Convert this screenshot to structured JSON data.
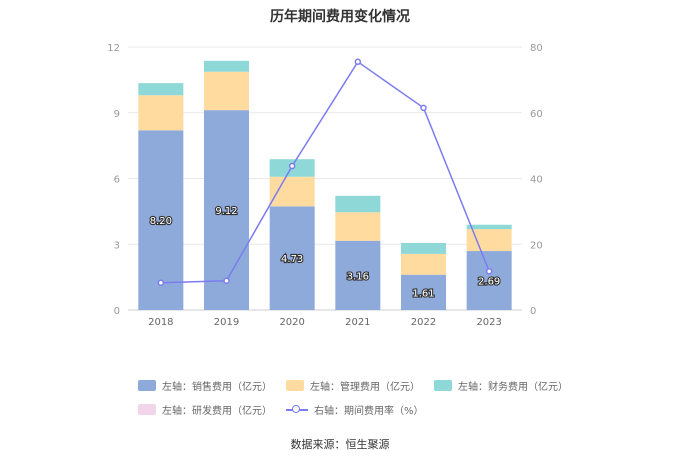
{
  "colors": {
    "sales": "#8eaadb",
    "admin": "#ffdba0",
    "finance": "#8ed8d8",
    "rnd": "#f2d5ea",
    "rate": "#7b7cf0",
    "axis": "#999999",
    "grid": "#e8e8e8"
  },
  "chart_data": {
    "type": "bar",
    "title": "历年期间费用变化情况",
    "categories": [
      "2018",
      "2019",
      "2020",
      "2021",
      "2022",
      "2023"
    ],
    "left_axis": {
      "ylim": [
        0,
        12
      ],
      "ticks": [
        "0",
        "3",
        "6",
        "9",
        "12"
      ]
    },
    "right_axis": {
      "ylim": [
        0,
        80
      ],
      "ticks": [
        "0",
        "20",
        "40",
        "60",
        "80"
      ]
    },
    "series": [
      {
        "name": "左轴：销售费用（亿元）",
        "key": "sales",
        "stack": true,
        "values": [
          8.2,
          9.12,
          4.73,
          3.16,
          1.61,
          2.69
        ],
        "labels": [
          "8.20",
          "9.12",
          "4.73",
          "3.16",
          "1.61",
          "2.69"
        ]
      },
      {
        "name": "左轴：管理费用（亿元）",
        "key": "admin",
        "stack": true,
        "values": [
          1.6,
          1.75,
          1.35,
          1.3,
          0.95,
          1.0
        ]
      },
      {
        "name": "左轴：财务费用（亿元）",
        "key": "finance",
        "stack": true,
        "values": [
          0.55,
          0.5,
          0.8,
          0.75,
          0.5,
          0.2
        ]
      },
      {
        "name": "左轴：研发费用（亿元）",
        "key": "rnd",
        "stack": true,
        "values": [
          0,
          0,
          0,
          0,
          0,
          0
        ]
      },
      {
        "name": "右轴：期间费用率（%）",
        "key": "rate",
        "type": "line",
        "axis": "right",
        "values": [
          8.3,
          8.9,
          43.8,
          75.5,
          61.5,
          11.8
        ]
      }
    ],
    "legend_position": "bottom"
  },
  "source": "数据来源：恒生聚源"
}
